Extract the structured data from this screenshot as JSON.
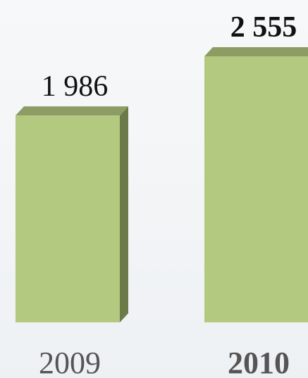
{
  "chart_data": {
    "type": "bar",
    "categories": [
      "2009",
      "2010"
    ],
    "values": [
      1986,
      2555
    ],
    "value_labels": [
      "1 986",
      "2 555"
    ],
    "color": "#b3c97f"
  }
}
